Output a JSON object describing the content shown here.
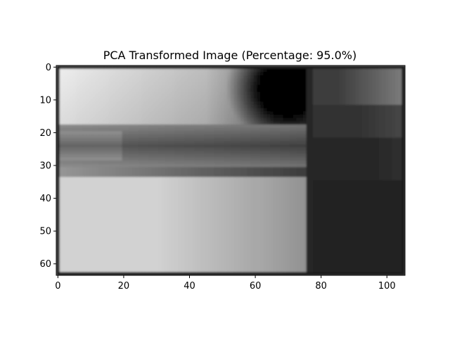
{
  "chart_data": {
    "type": "heatmap",
    "title": "PCA Transformed Image (Percentage: 95.0%)",
    "xlabel": "",
    "ylabel": "",
    "image_shape": [
      64,
      106
    ],
    "xlim": [
      -0.5,
      105.5
    ],
    "ylim": [
      63.5,
      -0.5
    ],
    "x_ticks": [
      0,
      20,
      40,
      60,
      80,
      100
    ],
    "y_ticks": [
      0,
      10,
      20,
      30,
      40,
      50,
      60
    ],
    "colormap": "gray",
    "value_range": [
      0,
      255
    ],
    "grid": false,
    "legend": "none"
  }
}
